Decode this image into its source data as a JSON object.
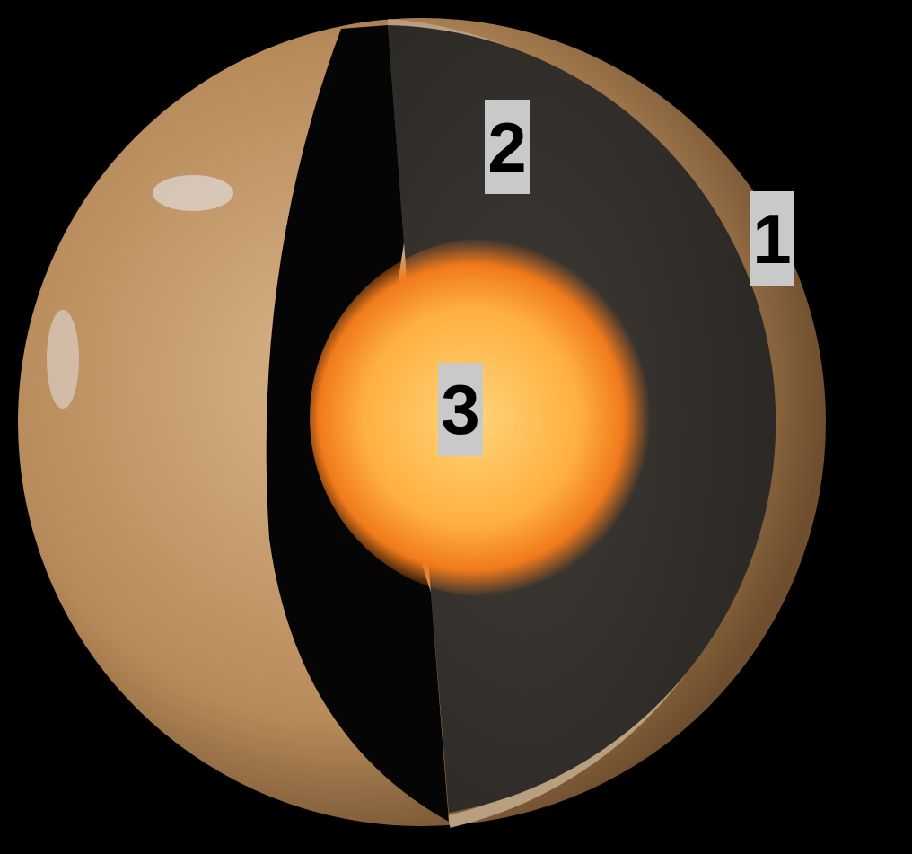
{
  "labels": [
    "1",
    "2",
    "3"
  ]
}
